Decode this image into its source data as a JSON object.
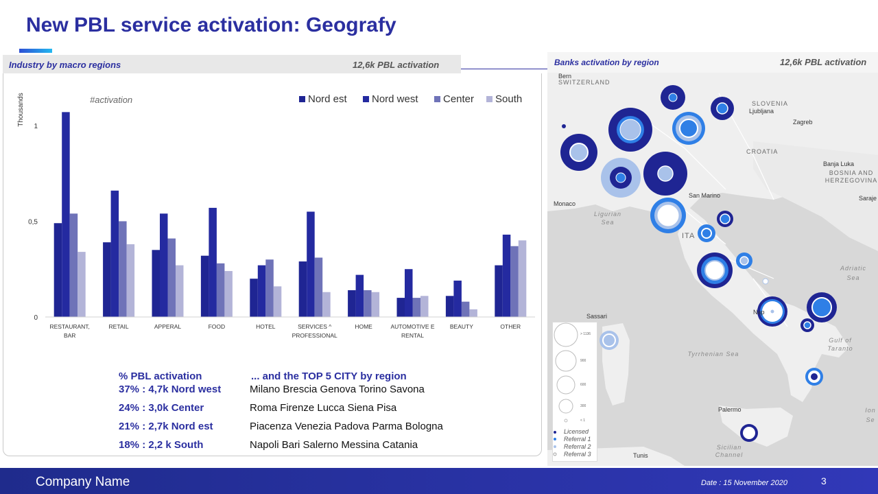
{
  "title": "New PBL service activation: Geografy",
  "left_panel": {
    "header_title": "Industry by macro regions",
    "kpi": "12,6k PBL activation"
  },
  "chart_data": {
    "type": "bar",
    "title": "#activation",
    "ylabel": "Thousands",
    "xlabel": "",
    "ylim": [
      0,
      1.1
    ],
    "yticks": [
      0,
      0.5,
      1
    ],
    "ytick_labels": [
      "0",
      "0,5",
      "1"
    ],
    "legend_position": "top-right",
    "categories": [
      "RESTAURANT, BAR",
      "RETAIL",
      "APPERAL",
      "FOOD",
      "HOTEL",
      "SERVICES ^ PROFESSIONAL",
      "HOME",
      "AUTOMOTIVE E RENTAL",
      "BEAUTY",
      "OTHER"
    ],
    "category_lines": [
      [
        "RESTAURANT,",
        "BAR"
      ],
      [
        "RETAIL"
      ],
      [
        "APPERAL"
      ],
      [
        "FOOD"
      ],
      [
        "HOTEL"
      ],
      [
        "SERVICES ^",
        "PROFESSIONAL"
      ],
      [
        "HOME"
      ],
      [
        "AUTOMOTIVE E",
        "RENTAL"
      ],
      [
        "BEAUTY"
      ],
      [
        "OTHER"
      ]
    ],
    "series": [
      {
        "name": "Nord est",
        "color": "#1f2593",
        "values": [
          0.49,
          0.39,
          0.35,
          0.32,
          0.2,
          0.29,
          0.14,
          0.1,
          0.11,
          0.27
        ]
      },
      {
        "name": "Nord west",
        "color": "#242aa0",
        "values": [
          1.07,
          0.66,
          0.54,
          0.57,
          0.27,
          0.55,
          0.22,
          0.25,
          0.19,
          0.43
        ]
      },
      {
        "name": "Center",
        "color": "#6f73b8",
        "values": [
          0.54,
          0.5,
          0.41,
          0.28,
          0.3,
          0.31,
          0.14,
          0.1,
          0.08,
          0.37
        ]
      },
      {
        "name": "South",
        "color": "#b3b4d8",
        "values": [
          0.34,
          0.38,
          0.27,
          0.24,
          0.16,
          0.13,
          0.13,
          0.11,
          0.04,
          0.4
        ]
      }
    ]
  },
  "stats": {
    "pct_header": "% PBL activation",
    "city_header": "... and the TOP 5 CITY by region",
    "rows": [
      {
        "pct": "37% : 4,7k Nord west",
        "cities": "Milano Brescia Genova Torino Savona"
      },
      {
        "pct": "24% : 3,0k Center",
        "cities": "Roma Firenze Lucca Siena Pisa"
      },
      {
        "pct": "21% : 2,7k Nord est",
        "cities": "Piacenza Venezia Padova Parma Bologna"
      },
      {
        "pct": "18% : 2,2 k South",
        "cities": "Napoli Bari Salerno Messina Catania"
      }
    ]
  },
  "map": {
    "title": "Banks activation by region",
    "kpi": "12,6k PBL activation",
    "labels": {
      "bern": "Bern",
      "switzerland": "SWITZERLAND",
      "slovenia": "SLOVENIA",
      "ljubljana": "Ljubljana",
      "zagreb": "Zagreb",
      "croatia": "CROATIA",
      "banja_luka": "Banja Luka",
      "bosnia": "BOSNIA AND HERZEGOVINA",
      "sarajevo": "Saraje",
      "monaco": "Monaco",
      "san_marino": "San Marino",
      "ligurian_sea": "Ligurian Sea",
      "italy": "ITA",
      "adriatic_sea": "Adriatic Sea",
      "sassari": "Sassari",
      "napoli": "Nap",
      "tyrrhenian_sea": "Tyrrhenian Sea",
      "gulf_taranto": "Gulf of Taranto",
      "ionian": "Ion Se",
      "palermo": "Palermo",
      "sicilian_channel": "Sicilian Channel",
      "tunis": "Tunis"
    },
    "legend": {
      "sizes": [
        "> 1136",
        "900",
        "600",
        "300",
        "< 1"
      ],
      "items": [
        "Licensed",
        "Referral 1",
        "Referral 2",
        "Referral 3"
      ],
      "colors": [
        "#1f2593",
        "#2f7fe6",
        "#a9c2ea",
        "#ffffff"
      ]
    }
  },
  "footer": {
    "company": "Company Name",
    "date": "Date : 15 November 2020",
    "page": "3"
  }
}
